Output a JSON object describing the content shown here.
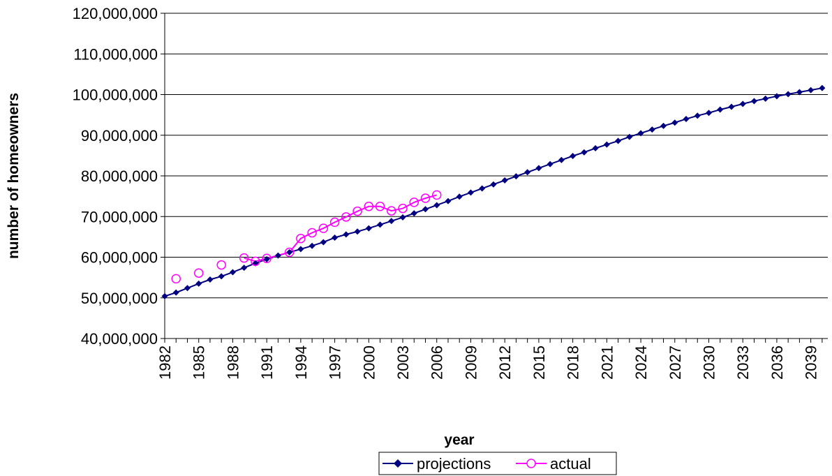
{
  "chart_data": {
    "type": "line",
    "title": "",
    "xlabel": "year",
    "ylabel": "number of homeowners",
    "xlim": [
      1982,
      2040
    ],
    "ylim": [
      40000000,
      120000000
    ],
    "y_ticks": [
      "40,000,000",
      "50,000,000",
      "60,000,000",
      "70,000,000",
      "80,000,000",
      "90,000,000",
      "100,000,000",
      "110,000,000",
      "120,000,000"
    ],
    "x_ticks": [
      "1982",
      "1985",
      "1988",
      "1991",
      "1994",
      "1997",
      "2000",
      "2003",
      "2006",
      "2009",
      "2012",
      "2015",
      "2018",
      "2021",
      "2024",
      "2027",
      "2030",
      "2033",
      "2036",
      "2039"
    ],
    "grid": "horizontal",
    "legend": "bottom-center",
    "series": [
      {
        "name": "projections",
        "color": "#000080",
        "marker": "diamond",
        "points": [
          [
            1982,
            50400000
          ],
          [
            1983,
            51300000
          ],
          [
            1984,
            52400000
          ],
          [
            1985,
            53500000
          ],
          [
            1986,
            54500000
          ],
          [
            1987,
            55300000
          ],
          [
            1988,
            56300000
          ],
          [
            1989,
            57400000
          ],
          [
            1990,
            58500000
          ],
          [
            1991,
            59500000
          ],
          [
            1992,
            60400000
          ],
          [
            1993,
            61200000
          ],
          [
            1994,
            62000000
          ],
          [
            1995,
            62800000
          ],
          [
            1996,
            63700000
          ],
          [
            1997,
            64800000
          ],
          [
            1998,
            65600000
          ],
          [
            1999,
            66300000
          ],
          [
            2000,
            67100000
          ],
          [
            2001,
            68000000
          ],
          [
            2002,
            68900000
          ],
          [
            2003,
            69800000
          ],
          [
            2004,
            70800000
          ],
          [
            2005,
            71800000
          ],
          [
            2006,
            72800000
          ],
          [
            2007,
            73800000
          ],
          [
            2008,
            74900000
          ],
          [
            2009,
            75900000
          ],
          [
            2010,
            76900000
          ],
          [
            2011,
            77900000
          ],
          [
            2012,
            78900000
          ],
          [
            2013,
            79900000
          ],
          [
            2014,
            80900000
          ],
          [
            2015,
            81900000
          ],
          [
            2016,
            82900000
          ],
          [
            2017,
            83900000
          ],
          [
            2018,
            84900000
          ],
          [
            2019,
            85800000
          ],
          [
            2020,
            86800000
          ],
          [
            2021,
            87700000
          ],
          [
            2022,
            88600000
          ],
          [
            2023,
            89600000
          ],
          [
            2024,
            90500000
          ],
          [
            2025,
            91400000
          ],
          [
            2026,
            92300000
          ],
          [
            2027,
            93100000
          ],
          [
            2028,
            94000000
          ],
          [
            2029,
            94800000
          ],
          [
            2030,
            95500000
          ],
          [
            2031,
            96300000
          ],
          [
            2032,
            97000000
          ],
          [
            2033,
            97700000
          ],
          [
            2034,
            98400000
          ],
          [
            2035,
            99000000
          ],
          [
            2036,
            99600000
          ],
          [
            2037,
            100100000
          ],
          [
            2038,
            100600000
          ],
          [
            2039,
            101100000
          ],
          [
            2040,
            101600000
          ]
        ]
      },
      {
        "name": "actual",
        "color": "#ff00ff",
        "marker": "circle",
        "points": [
          [
            1983,
            54700000
          ],
          [
            1985,
            56100000
          ],
          [
            1987,
            58100000
          ],
          [
            1989,
            59800000
          ],
          [
            1990,
            59000000
          ],
          [
            1991,
            59700000
          ],
          [
            1993,
            61200000
          ],
          [
            1994,
            64600000
          ],
          [
            1995,
            66000000
          ],
          [
            1996,
            67100000
          ],
          [
            1997,
            68600000
          ],
          [
            1998,
            69900000
          ],
          [
            1999,
            71300000
          ],
          [
            2000,
            72500000
          ],
          [
            2001,
            72500000
          ],
          [
            2002,
            71400000
          ],
          [
            2003,
            72000000
          ],
          [
            2004,
            73500000
          ],
          [
            2005,
            74500000
          ],
          [
            2006,
            75300000
          ]
        ],
        "connected_from_year": 1989
      }
    ]
  }
}
